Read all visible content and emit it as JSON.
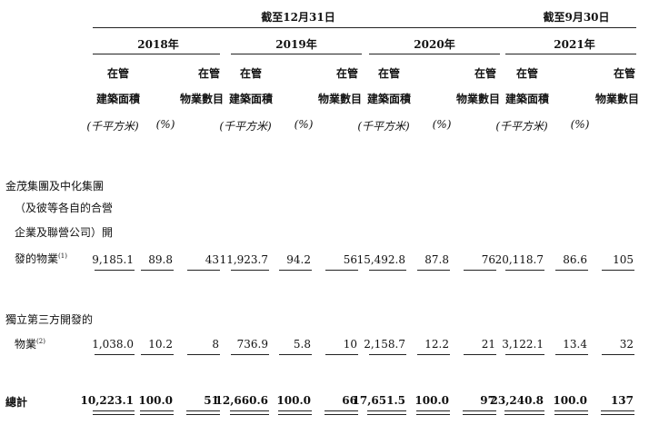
{
  "header": {
    "period_dec": "截至12月31日",
    "period_sep": "截至9月30日",
    "years": [
      "2018年",
      "2019年",
      "2020年",
      "2021年"
    ],
    "gfa_label": [
      "在管",
      "建築面積"
    ],
    "gfa_unit": "(千平方米)",
    "pct_unit": "(%)",
    "count_label": [
      "在管",
      "物業數目"
    ]
  },
  "rows": [
    {
      "label_lines": [
        "金茂集團及中化集團",
        "（及彼等各自的合營",
        "企業及聯營公司）開",
        "發的物業"
      ],
      "footnote": "(1)",
      "values": [
        "9,185.1",
        "89.8",
        "43",
        "11,923.7",
        "94.2",
        "56",
        "15,492.8",
        "87.8",
        "76",
        "20,118.7",
        "86.6",
        "105"
      ]
    },
    {
      "label_lines": [
        "獨立第三方開發的",
        "物業"
      ],
      "footnote": "(2)",
      "values": [
        "1,038.0",
        "10.2",
        "8",
        "736.9",
        "5.8",
        "10",
        "2,158.7",
        "12.2",
        "21",
        "3,122.1",
        "13.4",
        "32"
      ]
    }
  ],
  "total": {
    "label": "總計",
    "values": [
      "10,223.1",
      "100.0",
      "51",
      "12,660.6",
      "100.0",
      "66",
      "17,651.5",
      "100.0",
      "97",
      "23,240.8",
      "100.0",
      "137"
    ]
  }
}
